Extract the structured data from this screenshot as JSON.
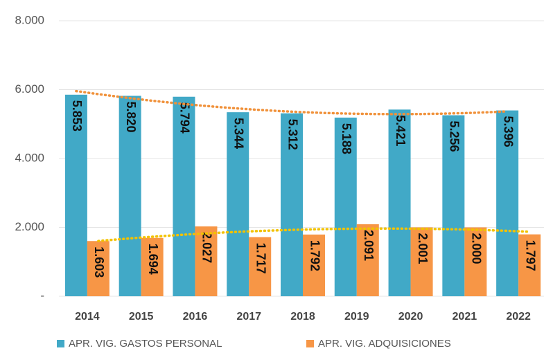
{
  "chart_data": {
    "type": "bar",
    "categories": [
      "2014",
      "2015",
      "2016",
      "2017",
      "2018",
      "2019",
      "2020",
      "2021",
      "2022"
    ],
    "series": [
      {
        "name": "APR. VIG. GASTOS PERSONAL",
        "color": "#41a9c7",
        "trend_color": "#f0913a",
        "values": [
          5853,
          5820,
          5794,
          5344,
          5312,
          5188,
          5421,
          5256,
          5396
        ],
        "value_labels": [
          "5.853",
          "5.820",
          "5.794",
          "5.344",
          "5.312",
          "5.188",
          "5.421",
          "5.256",
          "5.396"
        ]
      },
      {
        "name": "APR. VIG. ADQUISICIONES",
        "color": "#f79646",
        "trend_color": "#f2c200",
        "values": [
          1603,
          1694,
          2027,
          1717,
          1792,
          2091,
          2001,
          2000,
          1797
        ],
        "value_labels": [
          "1.603",
          "1.694",
          "2.027",
          "1.717",
          "1.792",
          "2.091",
          "2.001",
          "2.000",
          "1.797"
        ]
      }
    ],
    "ylim": [
      0,
      8000
    ],
    "yticks": [
      {
        "value": 0,
        "label": "-"
      },
      {
        "value": 2000,
        "label": "2.000"
      },
      {
        "value": 4000,
        "label": "4.000"
      },
      {
        "value": 6000,
        "label": "6.000"
      },
      {
        "value": 8000,
        "label": "8.000"
      }
    ],
    "grid": true,
    "trendline": "polynomial",
    "trendline_order": 2,
    "legend": "bottom"
  }
}
